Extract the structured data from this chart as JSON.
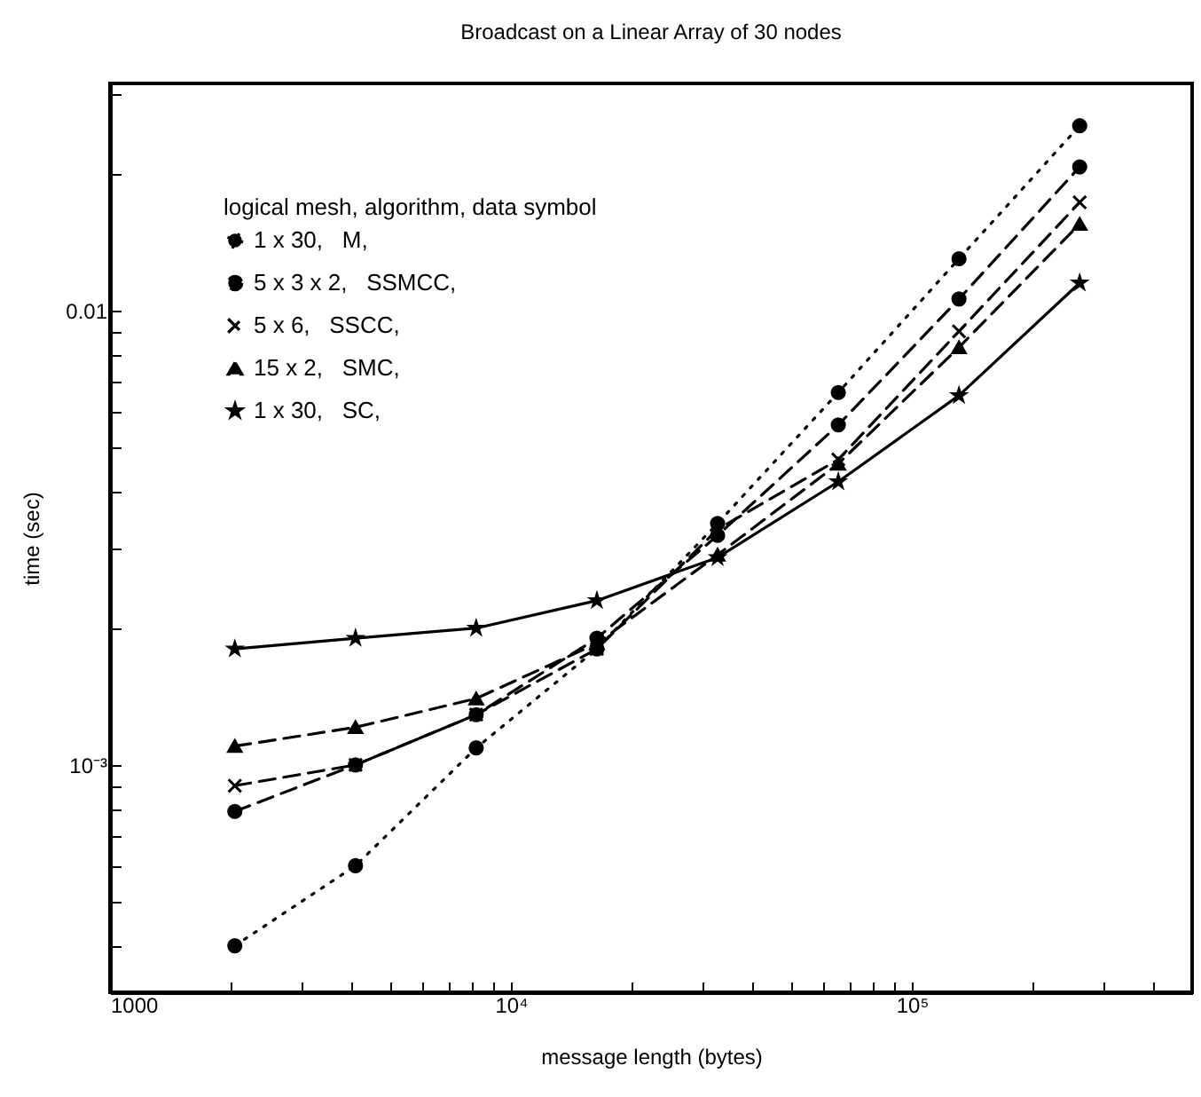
{
  "chart_data": {
    "type": "line",
    "title": "Broadcast on a Linear Array of 30 nodes",
    "xlabel": "message length (bytes)",
    "ylabel": "time (sec)",
    "legend_title": "logical mesh, algorithm, data symbol",
    "legend": "top left",
    "log": "xy",
    "grid": false,
    "x": [
      2048,
      4096,
      8192,
      16384,
      32768,
      65536,
      131072,
      262144
    ],
    "xlim": [
      1000,
      500000
    ],
    "xticks": [
      {
        "value": 1000,
        "label": "1000"
      },
      {
        "value": 2000,
        "label": null
      },
      {
        "value": 3000,
        "label": null
      },
      {
        "value": 4000,
        "label": null
      },
      {
        "value": 5000,
        "label": null
      },
      {
        "value": 6000,
        "label": null
      },
      {
        "value": 7000,
        "label": null
      },
      {
        "value": 8000,
        "label": null
      },
      {
        "value": 9000,
        "label": null
      },
      {
        "value": 10000,
        "label": "10⁴"
      },
      {
        "value": 20000,
        "label": null
      },
      {
        "value": 30000,
        "label": null
      },
      {
        "value": 40000,
        "label": null
      },
      {
        "value": 50000,
        "label": null
      },
      {
        "value": 60000,
        "label": null
      },
      {
        "value": 70000,
        "label": null
      },
      {
        "value": 80000,
        "label": null
      },
      {
        "value": 90000,
        "label": null
      },
      {
        "value": 100000,
        "label": "10⁵"
      },
      {
        "value": 200000,
        "label": null
      },
      {
        "value": 300000,
        "label": null
      },
      {
        "value": 400000,
        "label": null
      }
    ],
    "ylim": [
      0.000316,
      0.0316
    ],
    "yticks": [
      {
        "value": 0.0004,
        "label": null
      },
      {
        "value": 0.0005,
        "label": null
      },
      {
        "value": 0.0006,
        "label": null
      },
      {
        "value": 0.0007,
        "label": null
      },
      {
        "value": 0.0008,
        "label": null
      },
      {
        "value": 0.0009,
        "label": null
      },
      {
        "value": 0.001,
        "label": "10⁻³"
      },
      {
        "value": 0.002,
        "label": null
      },
      {
        "value": 0.003,
        "label": null
      },
      {
        "value": 0.004,
        "label": null
      },
      {
        "value": 0.005,
        "label": null
      },
      {
        "value": 0.006,
        "label": null
      },
      {
        "value": 0.007,
        "label": null
      },
      {
        "value": 0.008,
        "label": null
      },
      {
        "value": 0.009,
        "label": null
      },
      {
        "value": 0.01,
        "label": "0.01"
      },
      {
        "value": 0.02,
        "label": null
      },
      {
        "value": 0.03,
        "label": null
      }
    ],
    "series": [
      {
        "name": "1 x 30,   M,",
        "color": "#000000",
        "marker": "circle",
        "line_style": "dotted",
        "values": [
          0.0004,
          0.0006,
          0.00109,
          0.0018,
          0.0034,
          0.0066,
          0.013,
          0.0255
        ]
      },
      {
        "name": "5 x 3 x 2,   SSMCC,",
        "color": "#000000",
        "marker": "circle",
        "line_style": "dashed",
        "values": [
          0.00079,
          0.001,
          0.00129,
          0.0019,
          0.0032,
          0.0056,
          0.0106,
          0.0207
        ]
      },
      {
        "name": "5 x 6,   SSCC,",
        "color": "#000000",
        "marker": "cross",
        "line_style": "dashed",
        "values": [
          0.0009,
          0.001,
          0.00129,
          0.0018,
          0.0033,
          0.0047,
          0.009,
          0.0173
        ]
      },
      {
        "name": "15 x 2,   SMC,",
        "color": "#000000",
        "marker": "triangle",
        "line_style": "dashed",
        "values": [
          0.0011,
          0.00121,
          0.0014,
          0.00185,
          0.0029,
          0.0046,
          0.0083,
          0.0155
        ]
      },
      {
        "name": "1 x 30,   SC,",
        "color": "#000000",
        "marker": "star",
        "line_style": "solid",
        "values": [
          0.0018,
          0.0019,
          0.002,
          0.0023,
          0.00286,
          0.0042,
          0.0065,
          0.0115
        ]
      }
    ]
  }
}
